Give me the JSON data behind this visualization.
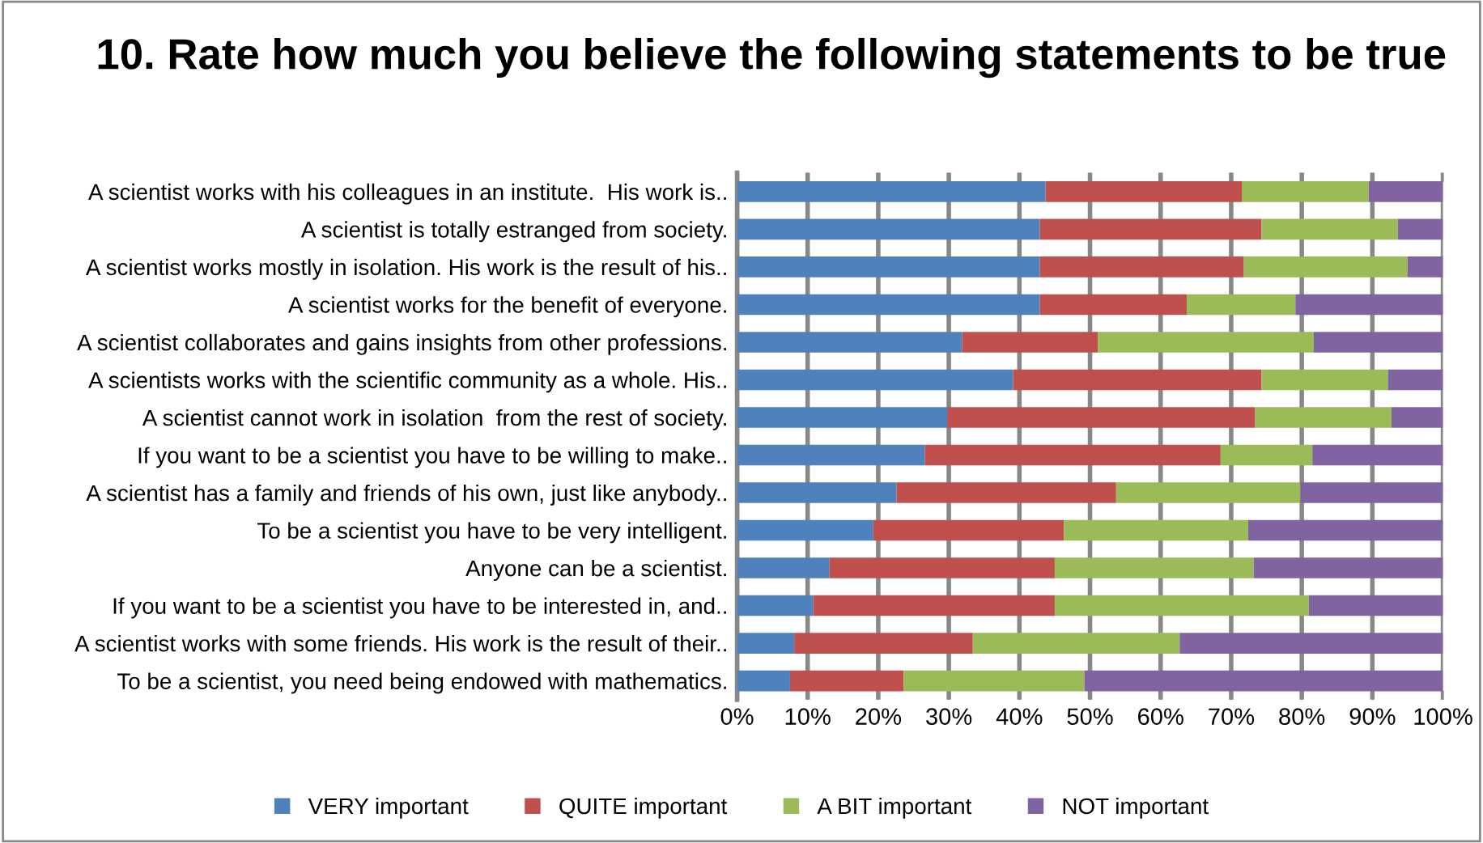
{
  "chart_data": {
    "type": "bar",
    "orientation": "horizontal",
    "stacked": true,
    "title": "10. Rate how much you believe the following statements to be true",
    "categories": [
      "A scientist works with his colleagues in an institute.  His work is..",
      "A scientist is totally estranged from society.",
      "A scientist works mostly in isolation. His work is the result of his..",
      "A scientist works for the benefit of everyone.",
      "A scientist collaborates and gains insights from other professions.",
      "A scientists works with the scientific community as a whole. His..",
      "A scientist cannot work in isolation  from the rest of society.",
      "If you want to be a scientist you have to be willing to make..",
      "A scientist has a family and friends of his own, just like anybody..",
      "To be a scientist you have to be very intelligent.",
      "Anyone can be a scientist.",
      "If you want to be a scientist you have to be interested in, and..",
      "A scientist works with some friends. His work is the result of their..",
      "To be a scientist, you need being endowed with mathematics."
    ],
    "series": [
      {
        "name": "VERY important",
        "color": "#4f81bd",
        "values": [
          43.7,
          42.9,
          42.9,
          42.9,
          31.9,
          39.1,
          29.8,
          26.6,
          22.6,
          19.3,
          13.1,
          10.8,
          8.1,
          7.5
        ]
      },
      {
        "name": "QUITE important",
        "color": "#c0504d",
        "values": [
          27.8,
          31.4,
          28.9,
          20.8,
          19.2,
          35.2,
          43.6,
          41.9,
          31.1,
          27.0,
          31.9,
          34.2,
          25.3,
          16.1
        ]
      },
      {
        "name": "A BIT important",
        "color": "#9bbb59",
        "values": [
          18.0,
          19.3,
          23.2,
          15.4,
          30.6,
          17.9,
          19.3,
          13.0,
          26.1,
          26.1,
          28.2,
          36.0,
          29.3,
          25.6
        ]
      },
      {
        "name": "NOT important",
        "color": "#8064a2",
        "values": [
          10.5,
          6.4,
          5.0,
          20.9,
          18.3,
          7.8,
          7.3,
          18.5,
          20.2,
          27.6,
          26.8,
          19.0,
          37.3,
          50.8
        ]
      }
    ],
    "xlim": [
      0,
      100
    ],
    "xticks": [
      {
        "value": 0,
        "label": "0%"
      },
      {
        "value": 10,
        "label": "10%"
      },
      {
        "value": 20,
        "label": "20%"
      },
      {
        "value": 30,
        "label": "30%"
      },
      {
        "value": 40,
        "label": "40%"
      },
      {
        "value": 50,
        "label": "50%"
      },
      {
        "value": 60,
        "label": "60%"
      },
      {
        "value": 70,
        "label": "70%"
      },
      {
        "value": 80,
        "label": "80%"
      },
      {
        "value": 90,
        "label": "90%"
      },
      {
        "value": 100,
        "label": "100%"
      }
    ],
    "grid": "x",
    "legend": "bottom"
  }
}
